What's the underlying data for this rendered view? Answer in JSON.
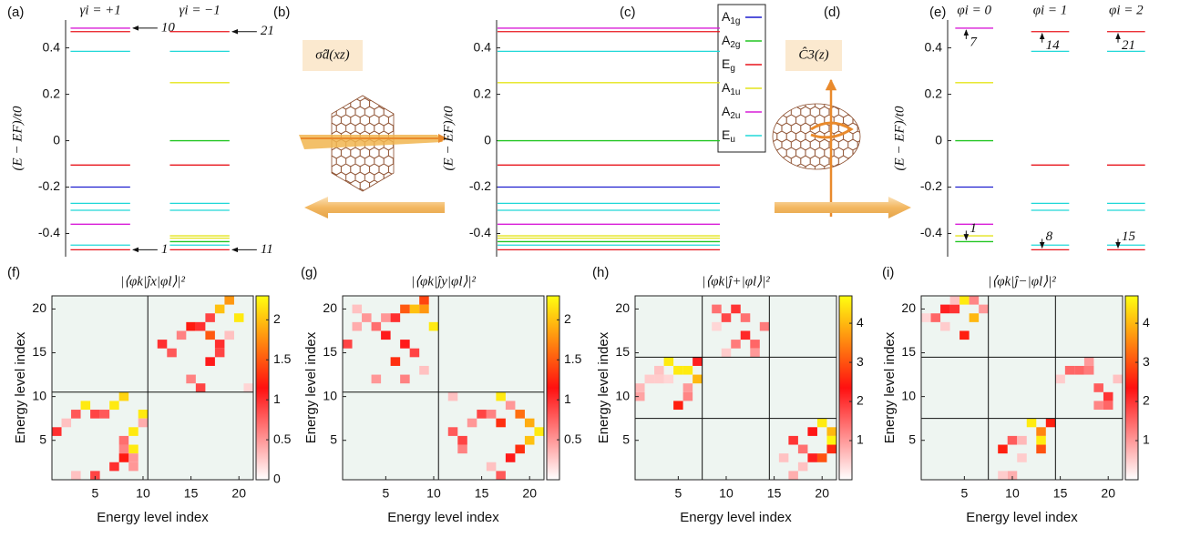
{
  "chart_data": [
    {
      "type": "levels",
      "panel_label": "(a)",
      "ylabel": "(E − EF)/t0",
      "ylim": [
        -0.5,
        0.52
      ],
      "yticks": [
        -0.4,
        -0.2,
        0,
        0.2,
        0.4
      ],
      "series": [
        {
          "name": "γi = +1",
          "values": [
            -0.47,
            -0.45,
            -0.36,
            -0.3,
            -0.27,
            -0.2,
            -0.105,
            0.385,
            0.47,
            0.485
          ],
          "colors": [
            "#e8141b",
            "#20d8d8",
            "#d91ed8",
            "#20d8d8",
            "#20d8d8",
            "#1c1ccf",
            "#e8141b",
            "#20d8d8",
            "#e8141b",
            "#d91ed8"
          ],
          "annotations": [
            {
              "text": "1",
              "y": -0.47
            },
            {
              "text": "10",
              "y": 0.485
            }
          ]
        },
        {
          "name": "γi = −1",
          "values": [
            -0.47,
            -0.45,
            -0.435,
            -0.42,
            -0.41,
            -0.3,
            -0.27,
            -0.105,
            0,
            0.25,
            0.385,
            0.47
          ],
          "colors": [
            "#e8141b",
            "#20d8d8",
            "#22c622",
            "#e4e41a",
            "#e4e41a",
            "#20d8d8",
            "#20d8d8",
            "#e8141b",
            "#22c622",
            "#e4e41a",
            "#20d8d8",
            "#e8141b"
          ],
          "annotations": [
            {
              "text": "11",
              "y": -0.47
            },
            {
              "text": "21",
              "y": 0.47
            }
          ]
        }
      ]
    },
    {
      "type": "levels",
      "panel_label": "(c)",
      "ylabel": "(E − EF)/t0",
      "legend": true,
      "ylim": [
        -0.5,
        0.52
      ],
      "yticks": [
        -0.4,
        -0.2,
        0,
        0.2,
        0.4
      ],
      "series": [
        {
          "name": "A1g",
          "color": "#1c1ccf",
          "values": [
            -0.2
          ]
        },
        {
          "name": "A2g",
          "color": "#22c622",
          "values": [
            0,
            -0.435
          ]
        },
        {
          "name": "Eg",
          "color": "#e8141b",
          "values": [
            0.47,
            -0.105,
            -0.47
          ]
        },
        {
          "name": "A1u",
          "color": "#e4e41a",
          "values": [
            0.25,
            -0.41,
            -0.42
          ]
        },
        {
          "name": "A2u",
          "color": "#d91ed8",
          "values": [
            0.485,
            -0.36
          ]
        },
        {
          "name": "Eu",
          "color": "#20d8d8",
          "values": [
            0.385,
            -0.27,
            -0.3,
            -0.45
          ]
        }
      ]
    },
    {
      "type": "levels",
      "panel_label": "(e)",
      "ylabel": "(E − EF)/t0",
      "ylim": [
        -0.5,
        0.52
      ],
      "yticks": [
        -0.4,
        -0.2,
        0,
        0.2,
        0.4
      ],
      "series": [
        {
          "name": "φi = 0",
          "values": [
            -0.435,
            -0.41,
            -0.36,
            -0.2,
            0,
            0.25,
            0.485
          ],
          "colors": [
            "#22c622",
            "#e4e41a",
            "#d91ed8",
            "#1c1ccf",
            "#22c622",
            "#e4e41a",
            "#d91ed8"
          ],
          "annotations": [
            {
              "text": "1",
              "y": -0.435
            },
            {
              "text": "7",
              "y": 0.485
            }
          ]
        },
        {
          "name": "φi = 1",
          "values": [
            -0.47,
            -0.45,
            -0.3,
            -0.27,
            -0.105,
            0.385,
            0.47
          ],
          "colors": [
            "#e8141b",
            "#20d8d8",
            "#20d8d8",
            "#20d8d8",
            "#e8141b",
            "#20d8d8",
            "#e8141b"
          ],
          "annotations": [
            {
              "text": "8",
              "y": -0.47
            },
            {
              "text": "14",
              "y": 0.47
            }
          ]
        },
        {
          "name": "φi = 2",
          "values": [
            -0.47,
            -0.45,
            -0.3,
            -0.27,
            -0.105,
            0.385,
            0.47
          ],
          "colors": [
            "#e8141b",
            "#20d8d8",
            "#20d8d8",
            "#20d8d8",
            "#e8141b",
            "#20d8d8",
            "#e8141b"
          ],
          "annotations": [
            {
              "text": "15",
              "y": -0.47
            },
            {
              "text": "21",
              "y": 0.47
            }
          ]
        }
      ]
    },
    {
      "type": "heatmap",
      "panel_label": "(f)",
      "title": "|⟨φk|ĵx|φl⟩|²",
      "xlabel": "Energy level index",
      "ylabel": "Energy level index",
      "xlim": [
        0.5,
        21.5
      ],
      "ylim": [
        0.5,
        21.5
      ],
      "xticks": [
        5,
        10,
        15,
        20
      ],
      "yticks": [
        5,
        10,
        15,
        20
      ],
      "block_lines": [
        10.5
      ],
      "background": "#eef5f1",
      "colormap": [
        "#ffffff",
        "#ff1010",
        "#ffff10"
      ],
      "colorbar": {
        "lim": [
          0,
          2.3
        ],
        "ticks": [
          0,
          0.5,
          1,
          1.5,
          2
        ]
      },
      "cells": [
        [
          1,
          6,
          1.0
        ],
        [
          2,
          7,
          0.3
        ],
        [
          3,
          8,
          0.8
        ],
        [
          4,
          9,
          2.2
        ],
        [
          5,
          8,
          0.9
        ],
        [
          6,
          8,
          0.8
        ],
        [
          7,
          9,
          2.2
        ],
        [
          8,
          10,
          2.1
        ],
        [
          9,
          6,
          2.2
        ],
        [
          10,
          8,
          2.2
        ],
        [
          9,
          4,
          2.2
        ],
        [
          10,
          7,
          0.4
        ],
        [
          8,
          5,
          0.7
        ],
        [
          8,
          4,
          0.6
        ],
        [
          9,
          3,
          0.5
        ],
        [
          7,
          2,
          1.0
        ],
        [
          5,
          1,
          0.9
        ],
        [
          8,
          3,
          1.2
        ],
        [
          9,
          2,
          0.5
        ],
        [
          3,
          1,
          0.3
        ],
        [
          12,
          16,
          1.0
        ],
        [
          13,
          15,
          0.8
        ],
        [
          14,
          17,
          0.6
        ],
        [
          15,
          18,
          1.2
        ],
        [
          16,
          18,
          1.0
        ],
        [
          17,
          19,
          0.9
        ],
        [
          17,
          17,
          1.5
        ],
        [
          18,
          20,
          2.0
        ],
        [
          19,
          21,
          1.8
        ],
        [
          20,
          19,
          2.2
        ],
        [
          18,
          16,
          1.0
        ],
        [
          18,
          15,
          0.9
        ],
        [
          17,
          14,
          1.1
        ],
        [
          15,
          12,
          0.6
        ],
        [
          16,
          11,
          0.9
        ],
        [
          21,
          11,
          0.2
        ],
        [
          19,
          17,
          0.3
        ]
      ]
    },
    {
      "type": "heatmap",
      "panel_label": "(g)",
      "title": "|⟨φk|ĵy|φl⟩|²",
      "xlabel": "Energy level index",
      "ylabel": "Energy level index",
      "xlim": [
        0.5,
        21.5
      ],
      "ylim": [
        0.5,
        21.5
      ],
      "xticks": [
        5,
        10,
        15,
        20
      ],
      "yticks": [
        5,
        10,
        15,
        20
      ],
      "block_lines": [
        10.5
      ],
      "background": "#eef5f1",
      "colormap": [
        "#ffffff",
        "#ff1010",
        "#ffff10"
      ],
      "colorbar": {
        "lim": [
          0,
          2.3
        ],
        "ticks": [
          0.5,
          1,
          1.5,
          2
        ]
      },
      "cells": [
        [
          1,
          16,
          0.9
        ],
        [
          2,
          18,
          0.4
        ],
        [
          2,
          20,
          0.3
        ],
        [
          3,
          19,
          0.5
        ],
        [
          4,
          18,
          0.7
        ],
        [
          5,
          19,
          0.5
        ],
        [
          5,
          17,
          1.1
        ],
        [
          6,
          19,
          1.0
        ],
        [
          6,
          14,
          1.3
        ],
        [
          7,
          16,
          1.1
        ],
        [
          7,
          12,
          0.6
        ],
        [
          8,
          15,
          0.9
        ],
        [
          8,
          20,
          2.0
        ],
        [
          9,
          20,
          1.8
        ],
        [
          9,
          21,
          1.4
        ],
        [
          10,
          18,
          2.2
        ],
        [
          7,
          20,
          1.5
        ],
        [
          4,
          12,
          0.5
        ],
        [
          9,
          13,
          0.3
        ],
        [
          12,
          6,
          0.8
        ],
        [
          13,
          5,
          0.9
        ],
        [
          13,
          4,
          0.6
        ],
        [
          14,
          7,
          0.5
        ],
        [
          15,
          8,
          0.9
        ],
        [
          16,
          8,
          0.6
        ],
        [
          17,
          7,
          1.3
        ],
        [
          17,
          10,
          2.2
        ],
        [
          18,
          9,
          0.5
        ],
        [
          19,
          8,
          1.6
        ],
        [
          20,
          7,
          1.9
        ],
        [
          21,
          6,
          2.2
        ],
        [
          18,
          3,
          1.1
        ],
        [
          16,
          2,
          0.3
        ],
        [
          17,
          1,
          0.8
        ],
        [
          19,
          4,
          1.3
        ],
        [
          20,
          5,
          2.0
        ],
        [
          12,
          10,
          0.3
        ]
      ]
    },
    {
      "type": "heatmap",
      "panel_label": "(h)",
      "title": "|⟨φk|ĵ+|φl⟩|²",
      "xlabel": "Energy level index",
      "ylabel": "Energy level index",
      "xlim": [
        0.5,
        21.5
      ],
      "ylim": [
        0.5,
        21.5
      ],
      "xticks": [
        5,
        10,
        15,
        20
      ],
      "yticks": [
        5,
        10,
        15,
        20
      ],
      "block_lines": [
        7.5,
        14.5
      ],
      "background": "#eef5f1",
      "colormap": [
        "#ffffff",
        "#ff1010",
        "#ffff10"
      ],
      "colorbar": {
        "lim": [
          0,
          4.7
        ],
        "ticks": [
          1,
          2,
          3,
          4
        ]
      },
      "cells": [
        [
          1,
          10,
          0.9
        ],
        [
          1,
          11,
          0.7
        ],
        [
          2,
          12,
          0.5
        ],
        [
          3,
          13,
          0.6
        ],
        [
          4,
          14,
          4.5
        ],
        [
          5,
          13,
          4.5
        ],
        [
          5,
          9,
          2.5
        ],
        [
          6,
          13,
          4.5
        ],
        [
          6,
          11,
          1.0
        ],
        [
          6,
          10,
          1.2
        ],
        [
          7,
          12,
          4.0
        ],
        [
          7,
          14,
          2.2
        ],
        [
          3,
          12,
          0.5
        ],
        [
          4,
          12,
          0.4
        ],
        [
          9,
          20,
          1.4
        ],
        [
          10,
          19,
          1.8
        ],
        [
          11,
          20,
          2.0
        ],
        [
          12,
          19,
          1.4
        ],
        [
          12,
          17,
          2.1
        ],
        [
          13,
          16,
          1.5
        ],
        [
          14,
          18,
          1.3
        ],
        [
          11,
          16,
          1.3
        ],
        [
          10,
          15,
          0.5
        ],
        [
          13,
          15,
          1.0
        ],
        [
          9,
          18,
          0.4
        ],
        [
          16,
          3,
          0.6
        ],
        [
          17,
          1,
          0.8
        ],
        [
          17,
          5,
          2.0
        ],
        [
          18,
          4,
          1.4
        ],
        [
          18,
          2,
          0.6
        ],
        [
          19,
          6,
          2.3
        ],
        [
          20,
          7,
          4.5
        ],
        [
          21,
          6,
          4.0
        ],
        [
          21,
          5,
          4.6
        ],
        [
          20,
          3,
          3.0
        ],
        [
          19,
          3,
          2.2
        ],
        [
          21,
          4,
          2.6
        ]
      ]
    },
    {
      "type": "heatmap",
      "panel_label": "(i)",
      "title": "|⟨φk|ĵ−|φl⟩|²",
      "xlabel": "Energy level index",
      "ylabel": "Energy level index",
      "xlim": [
        0.5,
        21.5
      ],
      "ylim": [
        0.5,
        21.5
      ],
      "xticks": [
        5,
        10,
        15,
        20
      ],
      "yticks": [
        5,
        10,
        15,
        20
      ],
      "block_lines": [
        7.5,
        14.5
      ],
      "background": "#eef5f1",
      "colormap": [
        "#ffffff",
        "#ff1010",
        "#ffff10"
      ],
      "colorbar": {
        "lim": [
          0,
          4.7
        ],
        "ticks": [
          1,
          2,
          3,
          4
        ]
      },
      "cells": [
        [
          2,
          19,
          1.5
        ],
        [
          3,
          20,
          2.2
        ],
        [
          4,
          20,
          2.0
        ],
        [
          4,
          21,
          0.6
        ],
        [
          5,
          21,
          4.5
        ],
        [
          6,
          19,
          4.0
        ],
        [
          5,
          17,
          2.5
        ],
        [
          6,
          21,
          1.2
        ],
        [
          7,
          20,
          1.0
        ],
        [
          3,
          18,
          0.5
        ],
        [
          1,
          19,
          0.4
        ],
        [
          9,
          4,
          2.5
        ],
        [
          10,
          5,
          1.6
        ],
        [
          11,
          5,
          0.7
        ],
        [
          12,
          7,
          4.5
        ],
        [
          13,
          6,
          3.5
        ],
        [
          13,
          5,
          4.5
        ],
        [
          13,
          4,
          3.0
        ],
        [
          14,
          7,
          2.5
        ],
        [
          11,
          3,
          0.5
        ],
        [
          10,
          1,
          0.8
        ],
        [
          9,
          1,
          0.5
        ],
        [
          15,
          12,
          0.5
        ],
        [
          16,
          13,
          1.5
        ],
        [
          17,
          13,
          1.5
        ],
        [
          18,
          14,
          1.0
        ],
        [
          19,
          11,
          1.6
        ],
        [
          19,
          9,
          1.2
        ],
        [
          20,
          10,
          2.0
        ],
        [
          20,
          9,
          1.5
        ],
        [
          21,
          12,
          0.6
        ],
        [
          18,
          13,
          1.3
        ]
      ]
    }
  ],
  "symmetry_panels": [
    {
      "panel_label": "(b)",
      "operation": "σ̂d(xz)"
    },
    {
      "panel_label": "(d)",
      "operation": "Ĉ3(z)"
    }
  ]
}
